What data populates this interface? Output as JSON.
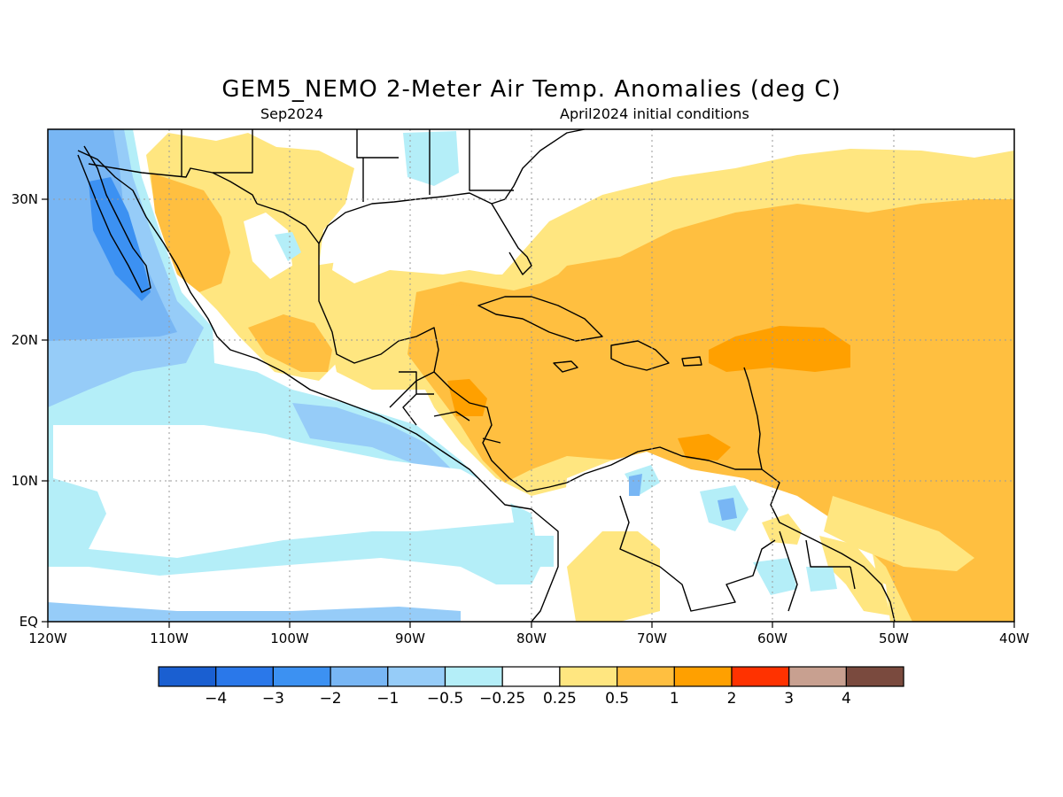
{
  "title": "GEM5_NEMO 2-Meter Air Temp. Anomalies (deg C)",
  "subtitle_left": "Sep2024",
  "subtitle_right": "April2024 initial conditions",
  "map": {
    "lon_range": [
      -120,
      -40
    ],
    "lat_range": [
      0,
      35
    ],
    "x_tick_labels": [
      "120W",
      "110W",
      "100W",
      "90W",
      "80W",
      "70W",
      "60W",
      "50W",
      "40W"
    ],
    "y_tick_labels": [
      "EQ",
      "10N",
      "20N",
      "30N"
    ],
    "grid": "dotted",
    "land_outline_color": "#000000"
  },
  "legend": {
    "colors": [
      "#1a5fd1",
      "#2a78ea",
      "#3c91f2",
      "#78b6f4",
      "#96ccf8",
      "#b4eef8",
      "#ffffff",
      "#ffe680",
      "#ffbf40",
      "#ffa000",
      "#ff3200",
      "#c8a090",
      "#7a4a3e"
    ],
    "labels": [
      "−4",
      "−3",
      "−2",
      "−1",
      "−0.5",
      "−0.25",
      "0.25",
      "0.5",
      "1",
      "2",
      "3",
      "4"
    ]
  }
}
